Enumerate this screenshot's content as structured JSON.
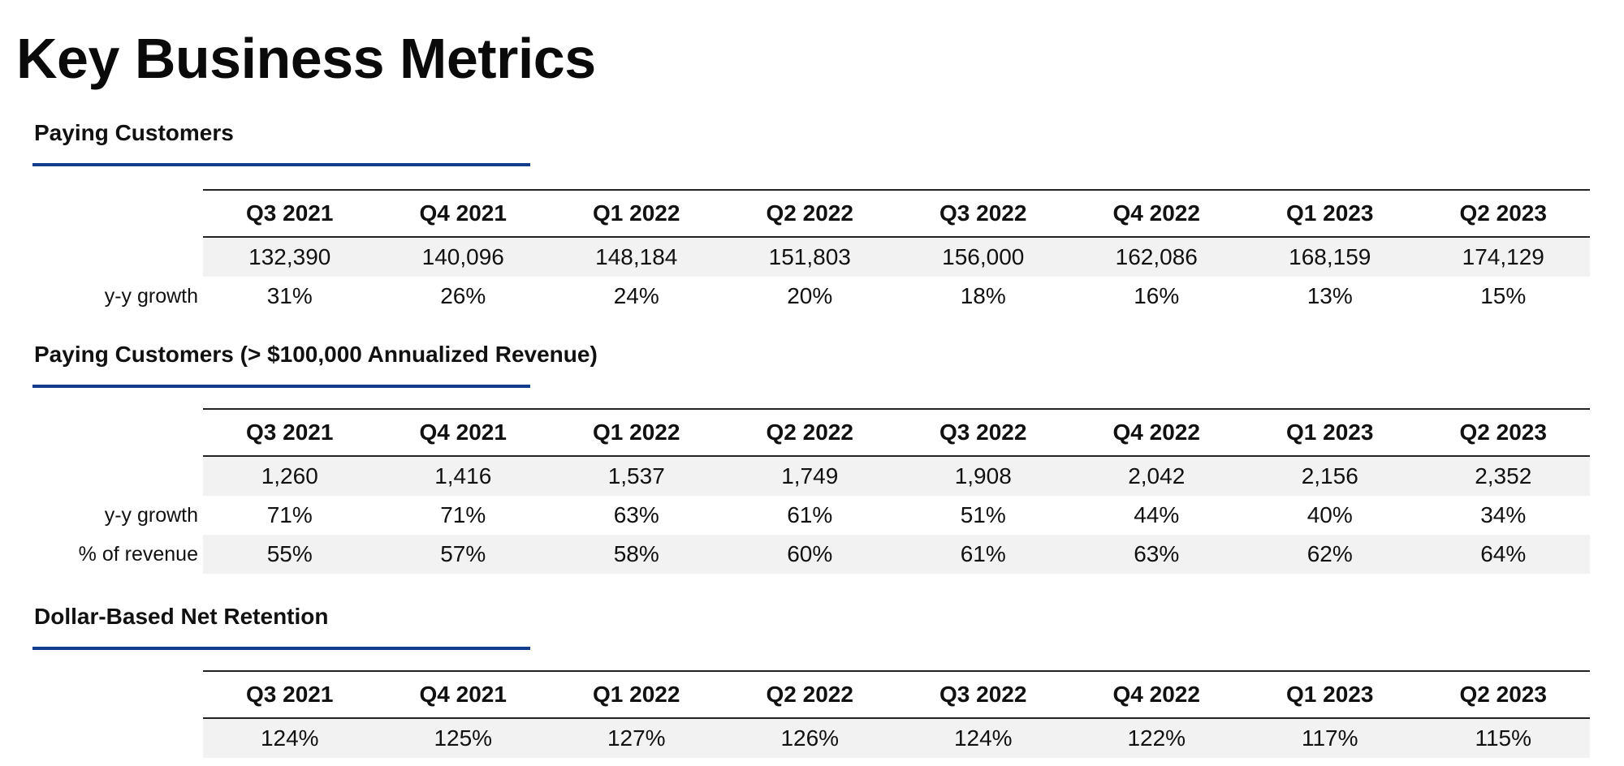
{
  "title": "Key Business Metrics",
  "sections": [
    {
      "title": "Paying Customers",
      "headers": [
        "Q3 2021",
        "Q4 2021",
        "Q1 2022",
        "Q2 2022",
        "Q3 2022",
        "Q4 2022",
        "Q1 2023",
        "Q2 2023"
      ],
      "rows": [
        {
          "label": "",
          "values": [
            "132,390",
            "140,096",
            "148,184",
            "151,803",
            "156,000",
            "162,086",
            "168,159",
            "174,129"
          ]
        },
        {
          "label": "y-y growth",
          "values": [
            "31%",
            "26%",
            "24%",
            "20%",
            "18%",
            "16%",
            "13%",
            "15%"
          ]
        }
      ]
    },
    {
      "title": "Paying Customers (> $100,000 Annualized Revenue)",
      "headers": [
        "Q3 2021",
        "Q4 2021",
        "Q1 2022",
        "Q2 2022",
        "Q3 2022",
        "Q4 2022",
        "Q1 2023",
        "Q2 2023"
      ],
      "rows": [
        {
          "label": "",
          "values": [
            "1,260",
            "1,416",
            "1,537",
            "1,749",
            "1,908",
            "2,042",
            "2,156",
            "2,352"
          ]
        },
        {
          "label": "y-y growth",
          "values": [
            "71%",
            "71%",
            "63%",
            "61%",
            "51%",
            "44%",
            "40%",
            "34%"
          ]
        },
        {
          "label": "% of revenue",
          "values": [
            "55%",
            "57%",
            "58%",
            "60%",
            "61%",
            "63%",
            "62%",
            "64%"
          ]
        }
      ]
    },
    {
      "title": "Dollar-Based Net Retention",
      "headers": [
        "Q3 2021",
        "Q4 2021",
        "Q1 2022",
        "Q2 2022",
        "Q3 2022",
        "Q4 2022",
        "Q1 2023",
        "Q2 2023"
      ],
      "rows": [
        {
          "label": "",
          "values": [
            "124%",
            "125%",
            "127%",
            "126%",
            "124%",
            "122%",
            "117%",
            "115%"
          ]
        }
      ]
    }
  ]
}
